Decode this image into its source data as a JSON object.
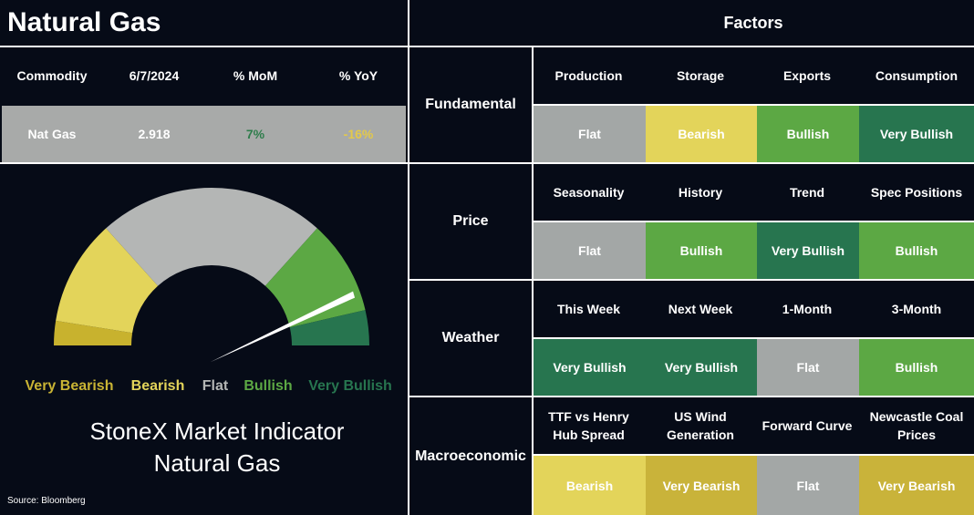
{
  "title": "Natural Gas",
  "factors_title": "Factors",
  "commodity_table": {
    "header": [
      "Commodity",
      "6/7/2024",
      "% MoM",
      "% YoY"
    ],
    "row": [
      "Nat Gas",
      "2.918",
      "7%",
      "-16%"
    ],
    "row_colors": [
      "#ffffff",
      "#ffffff",
      "#2f7d4c",
      "#e3c94a"
    ]
  },
  "gauge": {
    "labels": [
      {
        "text": "Very Bearish",
        "color": "#c9b434"
      },
      {
        "text": "Bearish",
        "color": "#e3d45a"
      },
      {
        "text": "Flat",
        "color": "#b4b6b5"
      },
      {
        "text": "Bullish",
        "color": "#5ca844"
      },
      {
        "text": "Very Bullish",
        "color": "#27754f"
      }
    ],
    "title_lines": [
      "StoneX Market Indicator",
      "Natural Gas"
    ]
  },
  "source": "Source: Bloomberg",
  "groups": [
    {
      "name": "Fundamental",
      "items": [
        {
          "name": "Production",
          "rating": "Flat",
          "color": "#a3a7a6"
        },
        {
          "name": "Storage",
          "rating": "Bearish",
          "color": "#e3d45a"
        },
        {
          "name": "Exports",
          "rating": "Bullish",
          "color": "#5ca844"
        },
        {
          "name": "Consumption",
          "rating": "Very Bullish",
          "color": "#27754f"
        }
      ]
    },
    {
      "name": "Price",
      "items": [
        {
          "name": "Seasonality",
          "rating": "Flat",
          "color": "#a3a7a6"
        },
        {
          "name": "History",
          "rating": "Bullish",
          "color": "#5ca844"
        },
        {
          "name": "Trend",
          "rating": "Very Bullish",
          "color": "#27754f"
        },
        {
          "name": "Spec Positions",
          "rating": "Bullish",
          "color": "#5ca844"
        }
      ]
    },
    {
      "name": "Weather",
      "items": [
        {
          "name": "This Week",
          "rating": "Very Bullish",
          "color": "#27754f"
        },
        {
          "name": "Next Week",
          "rating": "Very Bullish",
          "color": "#27754f"
        },
        {
          "name": "1-Month",
          "rating": "Flat",
          "color": "#a3a7a6"
        },
        {
          "name": "3-Month",
          "rating": "Bullish",
          "color": "#5ca844"
        }
      ]
    },
    {
      "name": "Macroeconomic",
      "items": [
        {
          "name": "TTF vs Henry Hub Spread",
          "rating": "Bearish",
          "color": "#e3d45a"
        },
        {
          "name": "US Wind Generation",
          "rating": "Very Bearish",
          "color": "#c9b33a"
        },
        {
          "name": "Forward Curve",
          "rating": "Flat",
          "color": "#a3a7a6"
        },
        {
          "name": "Newcastle Coal Prices",
          "rating": "Very Bearish",
          "color": "#c9b33a"
        }
      ]
    }
  ]
}
